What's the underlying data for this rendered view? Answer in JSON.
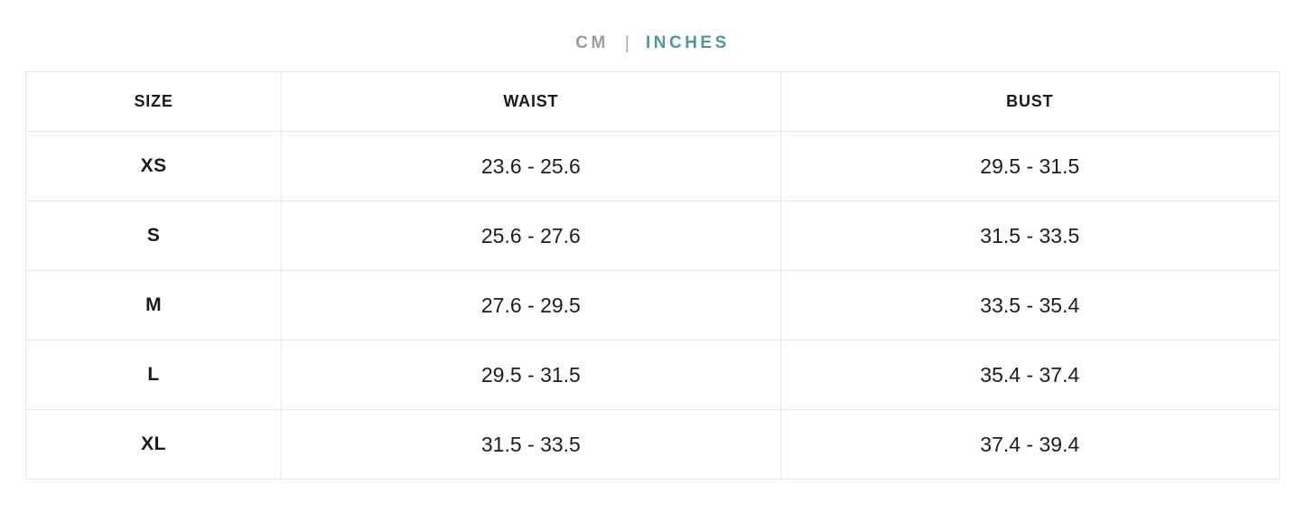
{
  "unit_toggle": {
    "cm_label": "CM",
    "separator": "|",
    "inches_label": "INCHES",
    "active_option": "INCHES",
    "colors": {
      "active_teal": "#4f969d",
      "inactive_gray": "#9b9b9b"
    }
  },
  "table": {
    "headers": {
      "size": "SIZE",
      "waist": "WAIST",
      "bust": "BUST"
    },
    "rows": [
      {
        "size": "XS",
        "waist": "23.6 - 25.6",
        "bust": "29.5 - 31.5"
      },
      {
        "size": "S",
        "waist": "25.6 - 27.6",
        "bust": "31.5 - 33.5"
      },
      {
        "size": "M",
        "waist": "27.6 - 29.5",
        "bust": "33.5 - 35.4"
      },
      {
        "size": "L",
        "waist": "29.5 - 31.5",
        "bust": "35.4 - 37.4"
      },
      {
        "size": "XL",
        "waist": "31.5 - 33.5",
        "bust": "37.4 - 39.4"
      }
    ],
    "border_color": "#e8e8ea"
  }
}
